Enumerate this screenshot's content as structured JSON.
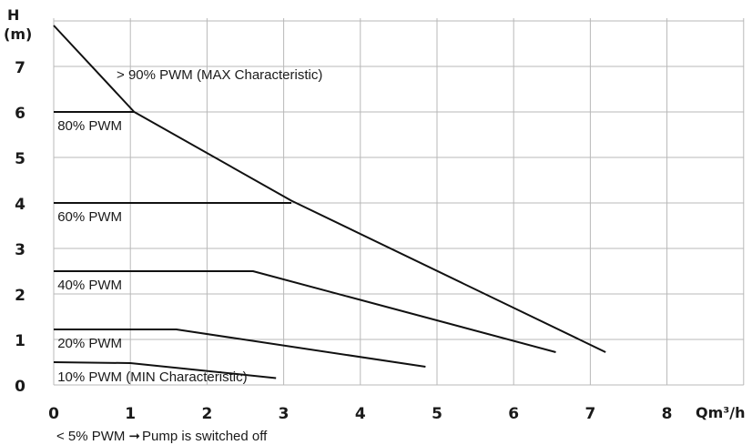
{
  "chart_data": {
    "type": "line",
    "title": "",
    "xlabel": "Qm³/h",
    "ylabel": "H (m)",
    "ylabel_lines": [
      "H",
      "(m)"
    ],
    "xlim": [
      0,
      9
    ],
    "ylim": [
      0,
      8
    ],
    "x_ticks": [
      "0",
      "1",
      "2",
      "3",
      "4",
      "5",
      "6",
      "7",
      "8"
    ],
    "y_ticks": [
      "0",
      "1",
      "2",
      "3",
      "4",
      "5",
      "6",
      "7"
    ],
    "grid": true,
    "series": [
      {
        "name": "> 90% PWM (MAX Characteristic)",
        "points": [
          [
            0,
            7.9
          ],
          [
            1.05,
            6.0
          ],
          [
            3.1,
            4.05
          ],
          [
            7.2,
            0.72
          ]
        ],
        "label_at": [
          0.82,
          6.72
        ]
      },
      {
        "name": "80% PWM",
        "points": [
          [
            0,
            6.0
          ],
          [
            1.05,
            6.0
          ]
        ],
        "label_at": [
          0.05,
          5.6
        ]
      },
      {
        "name": "60% PWM",
        "points": [
          [
            0,
            4.0
          ],
          [
            3.1,
            4.0
          ]
        ],
        "label_at": [
          0.05,
          3.6
        ]
      },
      {
        "name": "40% PWM",
        "points": [
          [
            0,
            2.5
          ],
          [
            2.6,
            2.5
          ],
          [
            6.55,
            0.72
          ]
        ],
        "label_at": [
          0.05,
          2.1
        ]
      },
      {
        "name": "20% PWM",
        "points": [
          [
            0,
            1.22
          ],
          [
            1.6,
            1.22
          ],
          [
            4.85,
            0.4
          ]
        ],
        "label_at": [
          0.05,
          0.82
        ]
      },
      {
        "name": "10% PWM (MIN Characteristic)",
        "points": [
          [
            0,
            0.5
          ],
          [
            1.0,
            0.48
          ],
          [
            2.9,
            0.15
          ]
        ],
        "label_at": [
          0.05,
          0.08
        ]
      }
    ],
    "footnote": "< 5% PWM",
    "footnote_arrow": "➞",
    "footnote_tail": "Pump is switched off"
  }
}
